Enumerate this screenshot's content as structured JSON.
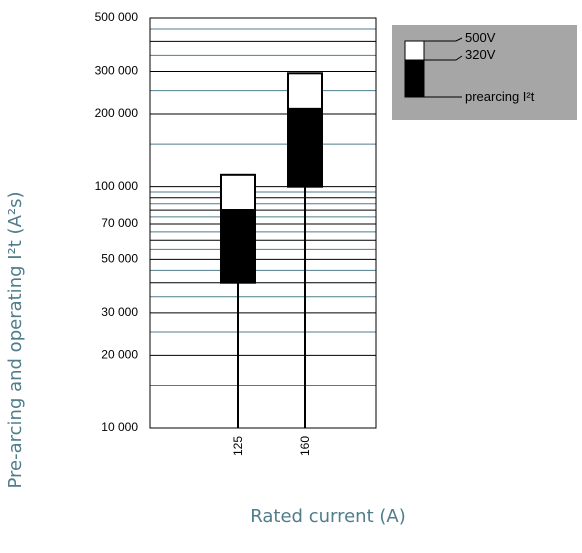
{
  "chart_data": {
    "type": "bar",
    "subtype": "floating-stacked",
    "xlabel": "Rated current (A)",
    "ylabel": "Pre-arcing and operating I²t (A²s)",
    "yscale": "log",
    "ylim": [
      10000,
      500000
    ],
    "y_tick_labels": [
      {
        "value": 500000,
        "label": "500 000"
      },
      {
        "value": 300000,
        "label": "300 000"
      },
      {
        "value": 200000,
        "label": "200 000"
      },
      {
        "value": 100000,
        "label": "100 000"
      },
      {
        "value": 70000,
        "label": "70 000"
      },
      {
        "value": 50000,
        "label": "50 000"
      },
      {
        "value": 30000,
        "label": "30 000"
      },
      {
        "value": 20000,
        "label": "20 000"
      },
      {
        "value": 10000,
        "label": "10 000"
      }
    ],
    "grid": {
      "black": [
        10000,
        20000,
        30000,
        40000,
        50000,
        60000,
        70000,
        80000,
        90000,
        100000,
        200000,
        300000,
        400000,
        500000
      ],
      "teal": [
        15000,
        25000,
        35000,
        45000,
        55000,
        65000,
        75000,
        85000,
        95000,
        150000,
        250000,
        350000,
        450000
      ]
    },
    "categories": [
      "125",
      "160"
    ],
    "series": [
      {
        "name": "prearcing I²t",
        "color": "#000000",
        "low": [
          40000,
          100000
        ],
        "high": [
          80000,
          210000
        ]
      },
      {
        "name": "320V",
        "color": "#000000",
        "low": [
          80000,
          210000
        ],
        "high": [
          80000,
          210000
        ]
      },
      {
        "name": "500V",
        "color": "#ffffff",
        "low": [
          80000,
          210000
        ],
        "high": [
          112000,
          295000
        ]
      }
    ],
    "legend": {
      "placement": "top-right",
      "background": "#a6a6a6",
      "entries": [
        "500V",
        "320V",
        "prearcing I²t"
      ]
    },
    "colors": {
      "axis_title": "#4f7d8c",
      "teal_grid": "#4f7d8c"
    }
  }
}
